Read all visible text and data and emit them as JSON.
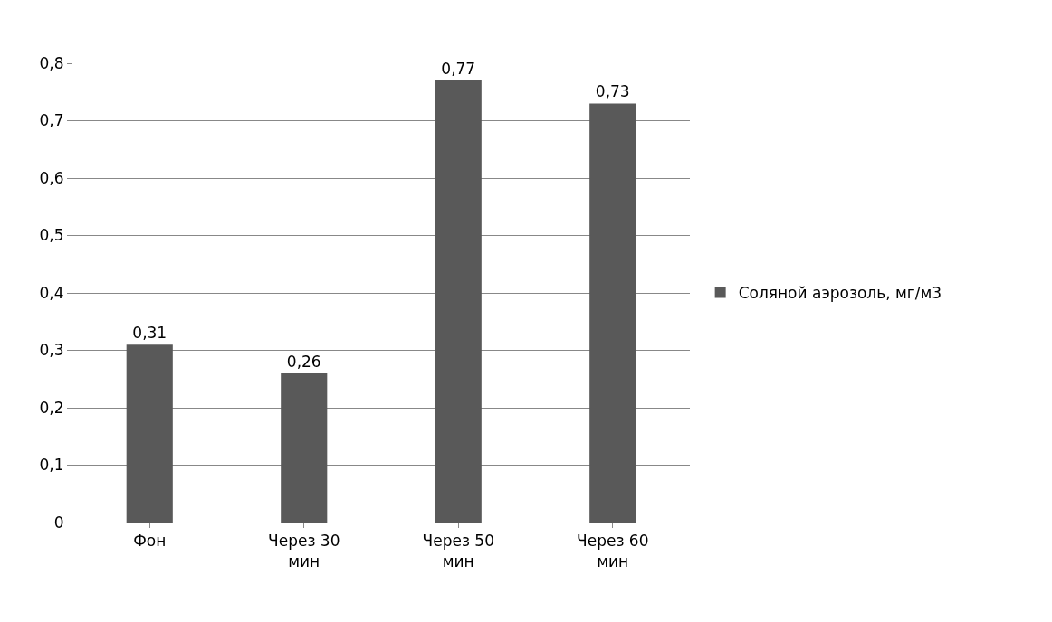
{
  "chart_data": {
    "type": "bar",
    "categories": [
      "Фон",
      "Через 30 мин",
      "Через 50 мин",
      "Через 60 мин"
    ],
    "series": [
      {
        "name": "Соляной аэрозоль, мг/м3",
        "color": "#595959",
        "values": [
          0.31,
          0.26,
          0.77,
          0.73
        ],
        "value_labels": [
          "0,31",
          "0,26",
          "0,77",
          "0,73"
        ]
      }
    ],
    "ylim": [
      0,
      0.8
    ],
    "yticks": [
      {
        "value": 0,
        "label": "0"
      },
      {
        "value": 0.1,
        "label": "0,1"
      },
      {
        "value": 0.2,
        "label": "0,2"
      },
      {
        "value": 0.3,
        "label": "0,3"
      },
      {
        "value": 0.4,
        "label": "0,4"
      },
      {
        "value": 0.5,
        "label": "0,5"
      },
      {
        "value": 0.6,
        "label": "0,6"
      },
      {
        "value": 0.7,
        "label": "0,7"
      },
      {
        "value": 0.8,
        "label": "0,8"
      }
    ],
    "grid": "y",
    "legend": "right"
  }
}
